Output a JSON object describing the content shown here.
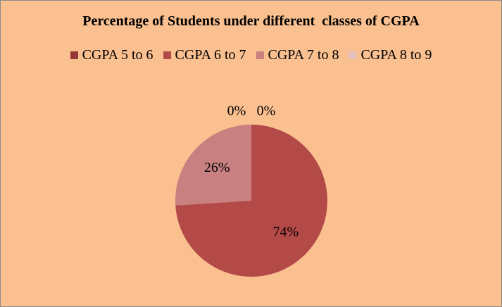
{
  "chart_data": {
    "type": "pie",
    "title": "Percentage of Students under different  classes of CGPA",
    "legend_position": "top",
    "categories": [
      "CGPA 5 to 6",
      "CGPA 6 to 7",
      "CGPA 7 to 8",
      "CGPA 8 to 9"
    ],
    "values": [
      0,
      74,
      26,
      0
    ],
    "data_labels": [
      "0%",
      "74%",
      "26%",
      "0%"
    ],
    "colors": [
      "#953735",
      "#B44A47",
      "#C98080",
      "#E3BFBF"
    ]
  },
  "background_color": "#FAC090"
}
